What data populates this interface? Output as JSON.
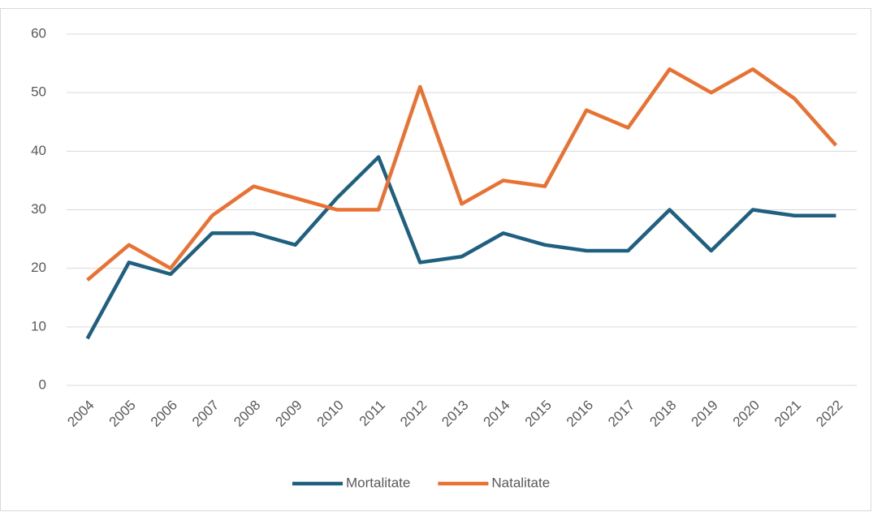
{
  "chart_data": {
    "type": "line",
    "categories": [
      "2004",
      "2005",
      "2006",
      "2007",
      "2008",
      "2009",
      "2010",
      "2011",
      "2012",
      "2013",
      "2014",
      "2015",
      "2016",
      "2017",
      "2018",
      "2019",
      "2020",
      "2021",
      "2022"
    ],
    "series": [
      {
        "name": "Mortalitate",
        "color": "#1f5f7f",
        "values": [
          8,
          21,
          19,
          26,
          26,
          24,
          32,
          39,
          21,
          22,
          26,
          24,
          23,
          23,
          30,
          23,
          30,
          29,
          29
        ]
      },
      {
        "name": "Natalitate",
        "color": "#e97132",
        "values": [
          18,
          24,
          20,
          29,
          34,
          32,
          30,
          30,
          51,
          31,
          35,
          34,
          47,
          44,
          54,
          50,
          54,
          49,
          41
        ]
      }
    ],
    "ylim": [
      0,
      60
    ],
    "yticks": [
      0,
      10,
      20,
      30,
      40,
      50,
      60
    ],
    "grid": true,
    "legend": "bottom"
  }
}
